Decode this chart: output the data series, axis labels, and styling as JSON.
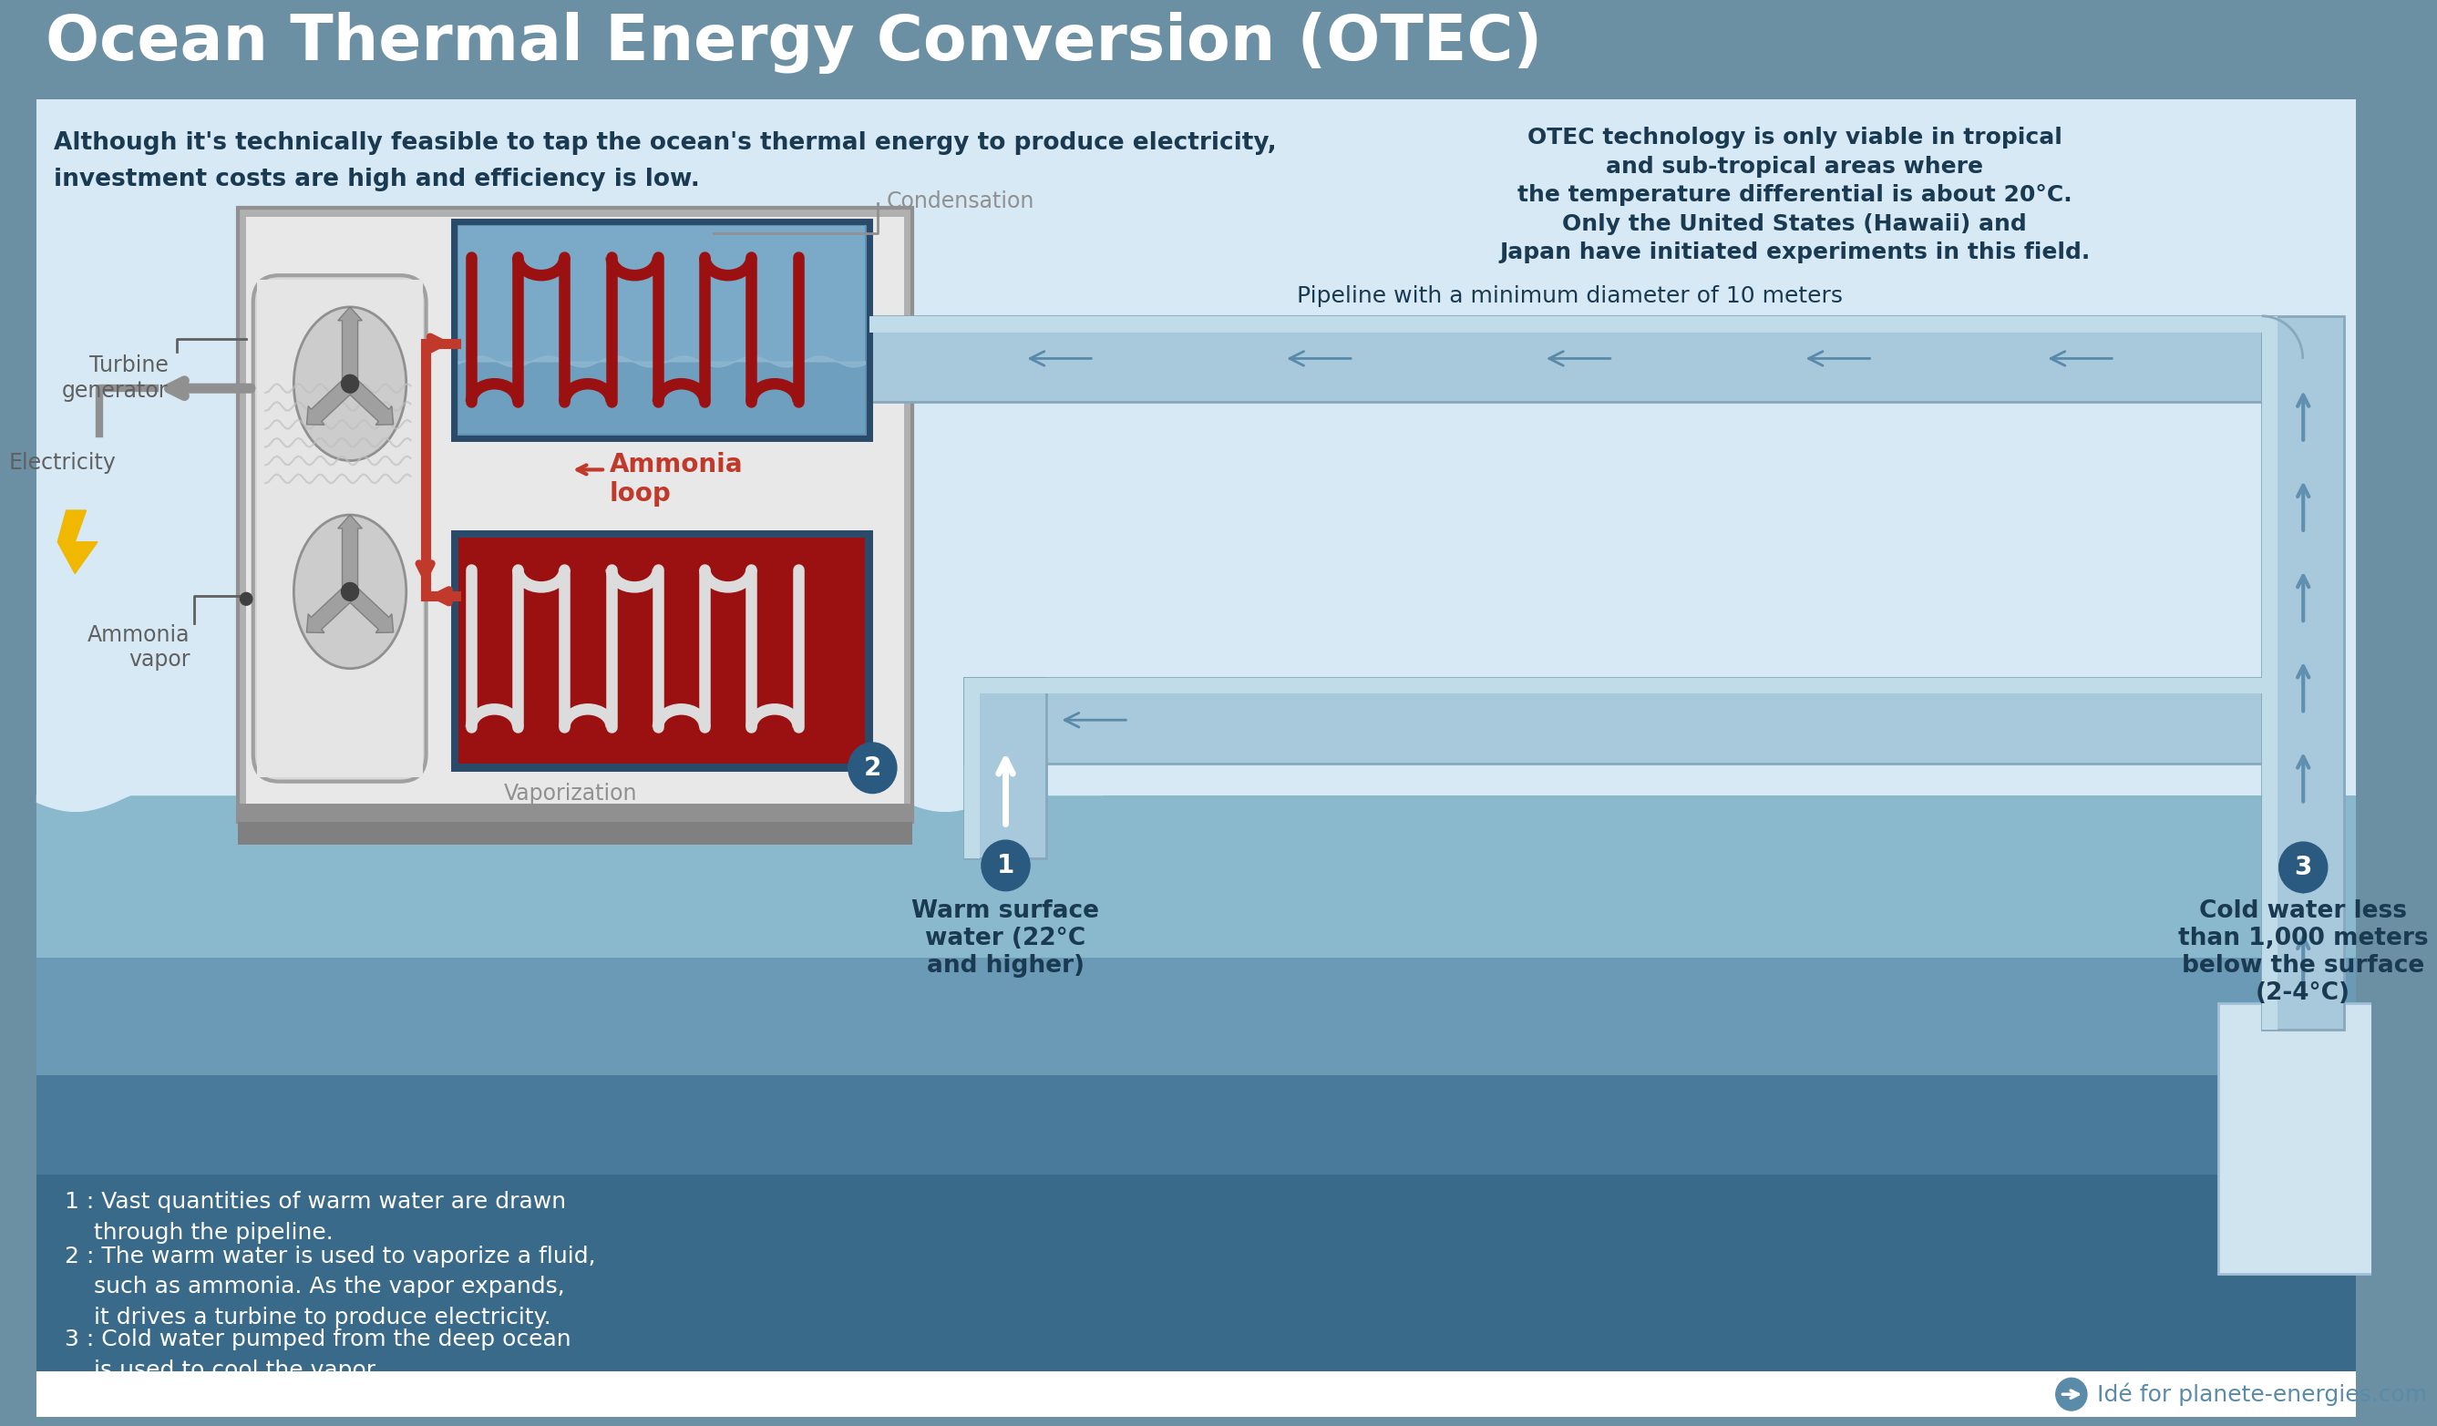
{
  "title": "Ocean Thermal Energy Conversion (OTEC)",
  "title_color": "#FFFFFF",
  "title_bg_color": "#6b8fa3",
  "main_bg_color": "#d6e9f5",
  "text_dark": "#1a3a52",
  "text_gray": "#7a7a7a",
  "red": "#c0392b",
  "dark_red": "#8b0000",
  "white": "#FFFFFF",
  "left_text_line1": "Although it's technically feasible to tap the ocean's thermal energy to produce electricity,",
  "left_text_line2": "investment costs are high and efficiency is low.",
  "right_text": "OTEC technology is only viable in tropical\nand sub-tropical areas where\nthe temperature differential is about 20°C.\nOnly the United States (Hawaii) and\nJapan have initiated experiments in this field.",
  "condensation_label": "Condensation",
  "ammonia_loop_label": "Ammonia\nloop",
  "vaporization_label": "Vaporization",
  "pipeline_label": "Pipeline with a minimum diameter of 10 meters",
  "turbine_label": "Turbine\ngenerator",
  "electricity_label": "Electricity",
  "ammonia_vapor_label": "Ammonia\nvapor",
  "warm_water_label": "Warm surface\nwater (22°C\nand higher)",
  "cold_water_label": "Cold water less\nthan 1,000 meters\nbelow the surface\n(2-4°C)",
  "step1_label": "1 : Vast quantities of warm water are drawn\n    through the pipeline.",
  "step2_label": "2 : The warm water is used to vaporize a fluid,\n    such as ammonia. As the vapor expands,\n    it drives a turbine to produce electricity.",
  "step3_label": "3 : Cold water pumped from the deep ocean\n    is used to cool the vapor.",
  "footer_text": "Idé for planete-energies.com",
  "pipe_color": "#a8c8dc",
  "pipe_edge": "#7aaec8",
  "ocean_surf": "#8ab8cc",
  "ocean_mid": "#6a9ab5",
  "ocean_deep": "#4a7a9b",
  "gray_box": "#a0a0a0",
  "gray_light": "#c8c8c8",
  "condenser_bg": "#7aa8c0",
  "condenser_fill": "#8fbfd8"
}
